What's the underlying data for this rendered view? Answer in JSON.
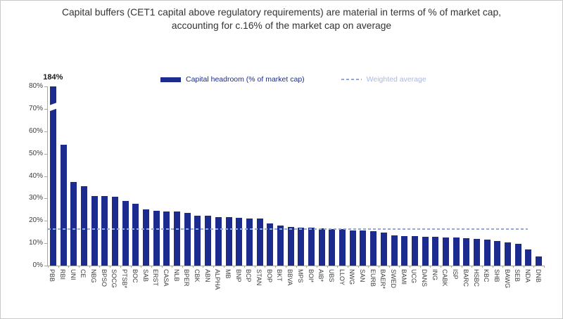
{
  "title": {
    "line1": "Capital buffers (CET1 capital above regulatory requirements) are material in terms of % of market cap,",
    "line2": "accounting for c.16% of the market cap on average"
  },
  "legend": [
    {
      "label": "Capital headroom (% of market cap)",
      "marker": "bar-swatch"
    },
    {
      "label": "Weighted average",
      "marker": "dashed-line-swatch"
    }
  ],
  "colors": {
    "bar": "#1B2C8E",
    "dashed_line": "#8FA9DC",
    "legend_bar_text": "#1B2C8E",
    "legend_avg_text": "#A6BAE4",
    "axis_line": "#A6A6A6",
    "axis_text": "#3D3D3D",
    "title_text": "#333333"
  },
  "chart_data": {
    "type": "bar",
    "title": "Capital buffers (CET1 capital above regulatory requirements) are material in terms of % of market cap, accounting for c.16% of the market cap on average",
    "xlabel": "",
    "ylabel": "",
    "ylim": [
      0,
      80
    ],
    "grid": false,
    "legend_position": "top",
    "y_ticks": [
      "0%",
      "10%",
      "20%",
      "30%",
      "40%",
      "50%",
      "60%",
      "70%",
      "80%"
    ],
    "categories": [
      "PBB",
      "RBI",
      "UNI",
      "CE",
      "NBG",
      "BPSO",
      "SOCG",
      "PTSB*",
      "BOC",
      "SAB",
      "ERST",
      "CASA",
      "NLB",
      "BPER",
      "CBK",
      "ABN",
      "ALPHA",
      "MB",
      "BNP",
      "BCP",
      "STAN",
      "BOP",
      "BKT",
      "BBVA",
      "MPS",
      "BOI*",
      "AIB*",
      "UBS",
      "LLOY",
      "NWG",
      "SAN",
      "EURB",
      "BAER*",
      "SWED",
      "BAMI",
      "UCG",
      "DANS",
      "ING",
      "CABK",
      "ISP",
      "BARC",
      "HSBC",
      "KBC",
      "SHB",
      "BAWG",
      "SEB",
      "NDA",
      "DNB"
    ],
    "values": [
      184,
      54,
      37.3,
      35.6,
      31.1,
      31.0,
      30.8,
      28.8,
      27.7,
      25.1,
      24.4,
      24.2,
      24.1,
      23.6,
      22.4,
      22.2,
      21.8,
      21.5,
      21.3,
      21.1,
      20.9,
      18.9,
      17.9,
      17.2,
      17.1,
      16.8,
      16.6,
      16.3,
      16.2,
      15.8,
      15.6,
      15.5,
      14.8,
      13.4,
      13.3,
      13.2,
      13.0,
      12.8,
      12.7,
      12.5,
      12.2,
      12.0,
      11.6,
      11.0,
      10.4,
      9.6,
      7.3,
      4.2
    ],
    "weighted_average": 16.2,
    "broken_bar": {
      "category": "PBB",
      "true_value": 184,
      "shown_at": 80,
      "annotation": "184%"
    }
  }
}
